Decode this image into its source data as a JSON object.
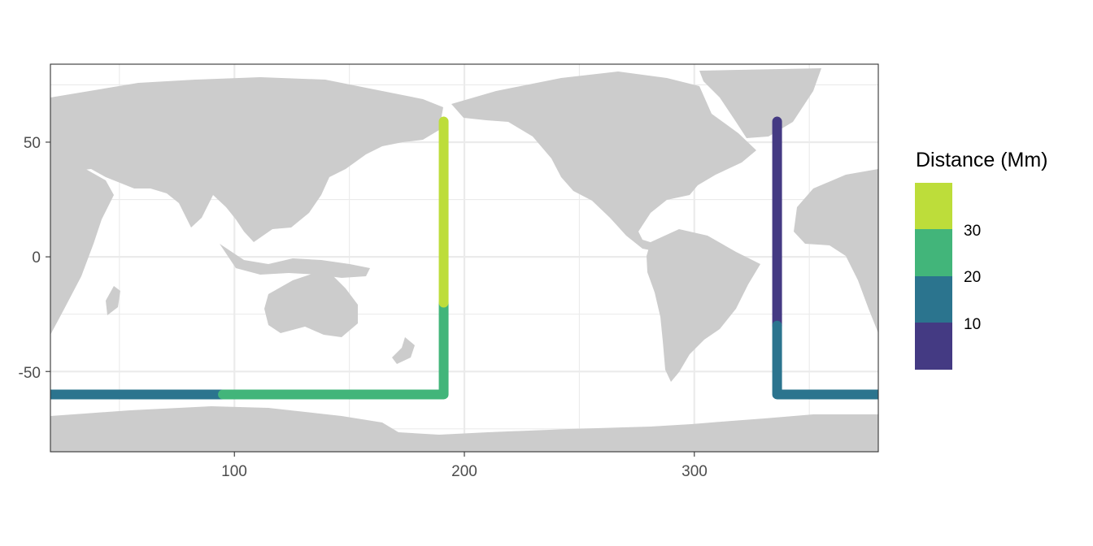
{
  "chart_data": {
    "type": "map",
    "xlim": [
      20,
      380
    ],
    "ylim": [
      -85,
      84
    ],
    "x_ticks": [
      100,
      200,
      300
    ],
    "x_tick_labels": [
      "100",
      "200",
      "300"
    ],
    "y_ticks": [
      50,
      0,
      -50
    ],
    "y_tick_labels": [
      "50",
      "0",
      "-50"
    ],
    "grid": true,
    "land_color": "#cccccc",
    "legend": {
      "title": "Distance (Mm)",
      "placement": "right",
      "breaks": [
        {
          "label": "10",
          "color": "#443a83"
        },
        {
          "label": "20",
          "color": "#2b748e"
        },
        {
          "label": "30",
          "color": "#42b57a"
        },
        {
          "label": "",
          "color": "#bddd3a"
        }
      ]
    },
    "series": [
      {
        "color": "#2b748e",
        "points": [
          [
            20,
            -60
          ],
          [
            95,
            -60
          ]
        ]
      },
      {
        "color": "#42b57a",
        "points": [
          [
            95,
            -60
          ],
          [
            191,
            -60
          ],
          [
            191,
            -20
          ]
        ]
      },
      {
        "color": "#bddd3a",
        "points": [
          [
            191,
            -20
          ],
          [
            191,
            59
          ]
        ]
      },
      {
        "color": "#443a83",
        "points": [
          [
            336,
            59
          ],
          [
            336,
            -30
          ]
        ]
      },
      {
        "color": "#2b748e",
        "points": [
          [
            336,
            -30
          ],
          [
            336,
            -60
          ],
          [
            380,
            -60
          ]
        ]
      }
    ]
  }
}
